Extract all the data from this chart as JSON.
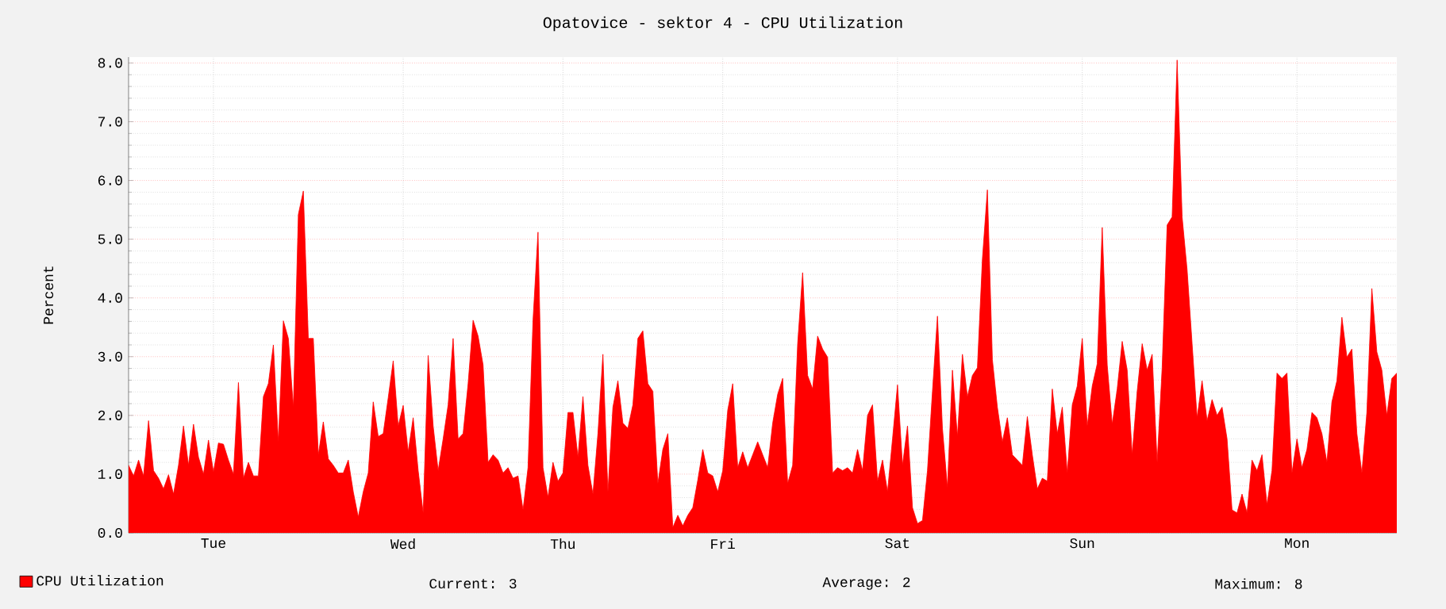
{
  "chart_data": {
    "type": "area",
    "title": "Opatovice - sektor 4 - CPU Utilization",
    "ylabel": "Percent",
    "categories": [
      null,
      null,
      null,
      null,
      null,
      null,
      null,
      null,
      null,
      null,
      null,
      null,
      null,
      null,
      null,
      null,
      null,
      "Tue",
      null,
      null,
      null,
      null,
      null,
      null,
      null,
      null,
      null,
      null,
      null,
      null,
      null,
      null,
      null,
      null,
      null,
      null,
      null,
      null,
      null,
      null,
      null,
      null,
      null,
      null,
      null,
      null,
      null,
      null,
      null,
      null,
      null,
      null,
      null,
      null,
      null,
      "Wed",
      null,
      null,
      null,
      null,
      null,
      null,
      null,
      null,
      null,
      null,
      null,
      null,
      null,
      null,
      null,
      null,
      null,
      null,
      null,
      null,
      null,
      null,
      null,
      null,
      null,
      null,
      null,
      null,
      null,
      null,
      null,
      "Thu",
      null,
      null,
      null,
      null,
      null,
      null,
      null,
      null,
      null,
      null,
      null,
      null,
      null,
      null,
      null,
      null,
      null,
      null,
      null,
      null,
      null,
      null,
      null,
      null,
      null,
      null,
      null,
      null,
      null,
      null,
      null,
      "Fri",
      null,
      null,
      null,
      null,
      null,
      null,
      null,
      null,
      null,
      null,
      null,
      null,
      null,
      null,
      null,
      null,
      null,
      null,
      null,
      null,
      null,
      null,
      null,
      null,
      null,
      null,
      null,
      null,
      null,
      null,
      null,
      null,
      null,
      null,
      "Sat",
      null,
      null,
      null,
      null,
      null,
      null,
      null,
      null,
      null,
      null,
      null,
      null,
      null,
      null,
      null,
      null,
      null,
      null,
      null,
      null,
      null,
      null,
      null,
      null,
      null,
      null,
      null,
      null,
      null,
      null,
      null,
      null,
      null,
      null,
      null,
      null,
      "Sun",
      null,
      null,
      null,
      null,
      null,
      null,
      null,
      null,
      null,
      null,
      null,
      null,
      null,
      null,
      null,
      null,
      null,
      null,
      null,
      null,
      null,
      null,
      null,
      null,
      null,
      null,
      null,
      null,
      null,
      null,
      null,
      null,
      null,
      null,
      null,
      null,
      null,
      null,
      null,
      null,
      null,
      null,
      "Mon",
      null,
      null,
      null,
      null,
      null,
      null,
      null,
      null,
      null,
      null,
      null,
      null,
      null,
      null,
      null,
      null,
      null,
      null,
      null,
      null
    ],
    "ylim": [
      0,
      8.1
    ],
    "yticks": [
      {
        "value": 0,
        "label": "0.0"
      },
      {
        "value": 1,
        "label": "1.0"
      },
      {
        "value": 2,
        "label": "2.0"
      },
      {
        "value": 3,
        "label": "3.0"
      },
      {
        "value": 4,
        "label": "4.0"
      },
      {
        "value": 5,
        "label": "5.0"
      },
      {
        "value": 6,
        "label": "6.0"
      },
      {
        "value": 7,
        "label": "7.0"
      },
      {
        "value": 8,
        "label": "8.0"
      }
    ],
    "grid": true,
    "legend": "bottom left",
    "annotations": [
      "Current: 3",
      "Average: 2",
      "Maximum: 8"
    ],
    "series": [
      {
        "name": "CPU Utilization",
        "color": "#ff0000",
        "values": [
          1.15,
          0.97,
          1.24,
          0.97,
          1.91,
          1.06,
          0.93,
          0.75,
          0.99,
          0.66,
          1.15,
          1.82,
          1.15,
          1.85,
          1.29,
          1.0,
          1.58,
          1.04,
          1.53,
          1.51,
          1.24,
          1.0,
          2.56,
          0.93,
          1.2,
          0.97,
          0.97,
          2.32,
          2.54,
          3.2,
          1.55,
          3.61,
          3.31,
          2.14,
          5.42,
          5.82,
          3.31,
          3.31,
          1.33,
          1.89,
          1.26,
          1.15,
          1.02,
          1.02,
          1.24,
          0.7,
          0.27,
          0.7,
          1.02,
          2.23,
          1.64,
          1.69,
          2.3,
          2.93,
          1.82,
          2.17,
          1.38,
          1.96,
          1.06,
          0.34,
          3.02,
          1.82,
          1.06,
          1.6,
          2.18,
          3.31,
          1.6,
          1.69,
          2.54,
          3.62,
          3.35,
          2.86,
          1.2,
          1.33,
          1.24,
          1.02,
          1.11,
          0.93,
          0.97,
          0.39,
          1.11,
          3.62,
          5.12,
          1.11,
          0.61,
          1.2,
          0.88,
          1.02,
          2.05,
          2.05,
          1.29,
          2.32,
          1.15,
          0.66,
          1.69,
          3.04,
          0.7,
          2.14,
          2.59,
          1.87,
          1.78,
          2.18,
          3.31,
          3.44,
          2.54,
          2.41,
          0.84,
          1.42,
          1.69,
          0.09,
          0.3,
          0.12,
          0.3,
          0.43,
          0.9,
          1.42,
          1.02,
          0.97,
          0.7,
          1.06,
          2.09,
          2.54,
          1.11,
          1.38,
          1.11,
          1.33,
          1.55,
          1.33,
          1.11,
          1.87,
          2.36,
          2.63,
          0.84,
          1.15,
          3.22,
          4.43,
          2.68,
          2.45,
          3.35,
          3.13,
          2.99,
          1.02,
          1.11,
          1.06,
          1.11,
          1.02,
          1.42,
          1.06,
          2.0,
          2.18,
          0.88,
          1.24,
          0.7,
          1.6,
          2.52,
          1.15,
          1.82,
          0.43,
          0.16,
          0.21,
          1.06,
          2.41,
          3.69,
          1.78,
          0.77,
          2.77,
          1.64,
          3.04,
          2.32,
          2.68,
          2.81,
          4.66,
          5.84,
          2.95,
          2.14,
          1.55,
          1.96,
          1.33,
          1.24,
          1.15,
          1.98,
          1.33,
          0.75,
          0.93,
          0.88,
          2.45,
          1.69,
          2.14,
          1.02,
          2.18,
          2.5,
          3.31,
          1.82,
          2.5,
          2.88,
          5.2,
          2.86,
          1.85,
          2.45,
          3.26,
          2.77,
          1.33,
          2.41,
          3.22,
          2.77,
          3.04,
          1.2,
          2.81,
          5.24,
          5.38,
          8.05,
          5.38,
          4.48,
          3.22,
          1.96,
          2.59,
          1.91,
          2.27,
          2.0,
          2.14,
          1.6,
          0.39,
          0.34,
          0.66,
          0.34,
          1.24,
          1.06,
          1.33,
          0.48,
          1.06,
          2.72,
          2.63,
          2.72,
          1.02,
          1.6,
          1.11,
          1.42,
          2.05,
          1.96,
          1.69,
          1.2,
          2.23,
          2.59,
          3.67,
          2.99,
          3.13,
          1.69,
          1.02,
          2.05,
          4.16,
          3.08,
          2.77,
          2.0,
          2.63,
          2.72
        ]
      }
    ]
  }
}
